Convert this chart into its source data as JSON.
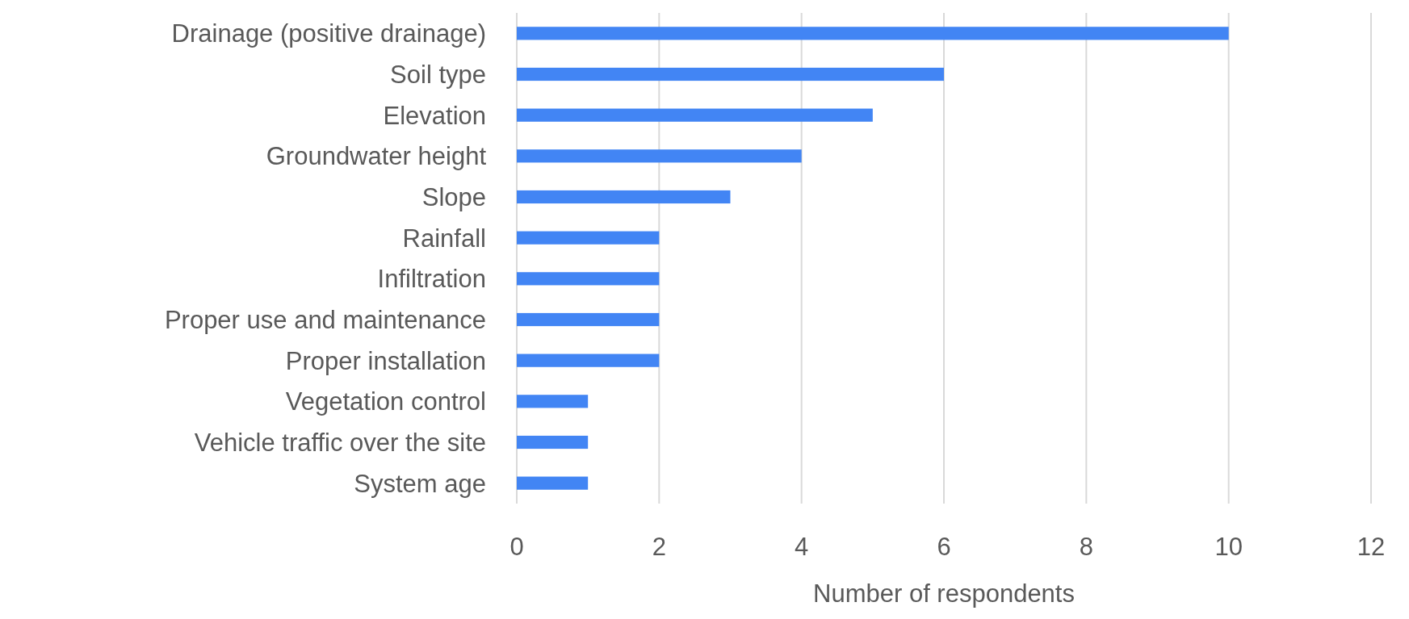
{
  "chart_data": {
    "type": "bar",
    "orientation": "horizontal",
    "xlabel": "Number of respondents",
    "categories": [
      "Drainage (positive drainage)",
      "Soil type",
      "Elevation",
      "Groundwater height",
      "Slope",
      "Rainfall",
      "Infiltration",
      "Proper use and maintenance",
      "Proper installation",
      "Vegetation control",
      "Vehicle traffic over the site",
      "System age"
    ],
    "values": [
      10,
      6,
      5,
      4,
      3,
      2,
      2,
      2,
      2,
      1,
      1,
      1
    ],
    "color": "#4285f4",
    "xlim": [
      0,
      12
    ],
    "xticks": [
      0,
      2,
      4,
      6,
      8,
      10,
      12
    ],
    "grid": "x"
  }
}
